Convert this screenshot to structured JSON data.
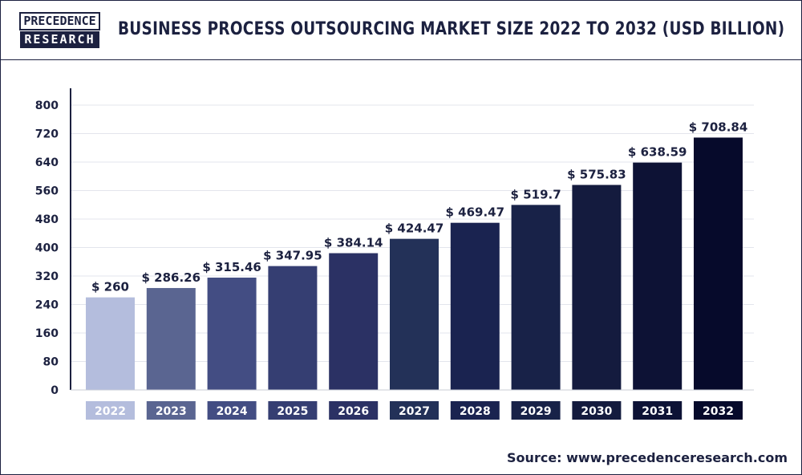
{
  "header": {
    "logo_line1": "PRECEDENCE",
    "logo_line2": "RESEARCH",
    "title": "BUSINESS PROCESS OUTSOURCING MARKET SIZE 2022 TO 2032 (USD BILLION)"
  },
  "footer": {
    "source": "Source: www.precedenceresearch.com"
  },
  "colors": {
    "text_dark": "#1c2140",
    "bars": [
      "#b4bddd",
      "#5a6591",
      "#434d83",
      "#353e72",
      "#2b3164",
      "#233158",
      "#1a2350",
      "#182248",
      "#141b3e",
      "#0d1235",
      "#060a2b"
    ]
  },
  "chart_data": {
    "type": "bar",
    "title": "BUSINESS PROCESS OUTSOURCING MARKET SIZE 2022 TO 2032 (USD BILLION)",
    "xlabel": "",
    "ylabel": "",
    "categories": [
      "2022",
      "2023",
      "2024",
      "2025",
      "2026",
      "2027",
      "2028",
      "2029",
      "2030",
      "2031",
      "2032"
    ],
    "values": [
      260,
      286.26,
      315.46,
      347.95,
      384.14,
      424.47,
      469.47,
      519.7,
      575.83,
      638.59,
      708.84
    ],
    "labels": [
      "$ 260",
      "$ 286.26",
      "$ 315.46",
      "$ 347.95",
      "$ 384.14",
      "$ 424.47",
      "$ 469.47",
      "$ 519.7",
      "$ 575.83",
      "$ 638.59",
      "$ 708.84"
    ],
    "yticks": [
      "0",
      "80",
      "160",
      "240",
      "320",
      "400",
      "480",
      "560",
      "640",
      "720",
      "800"
    ],
    "ylim": [
      0,
      800
    ],
    "grid": true,
    "legend": "none"
  }
}
